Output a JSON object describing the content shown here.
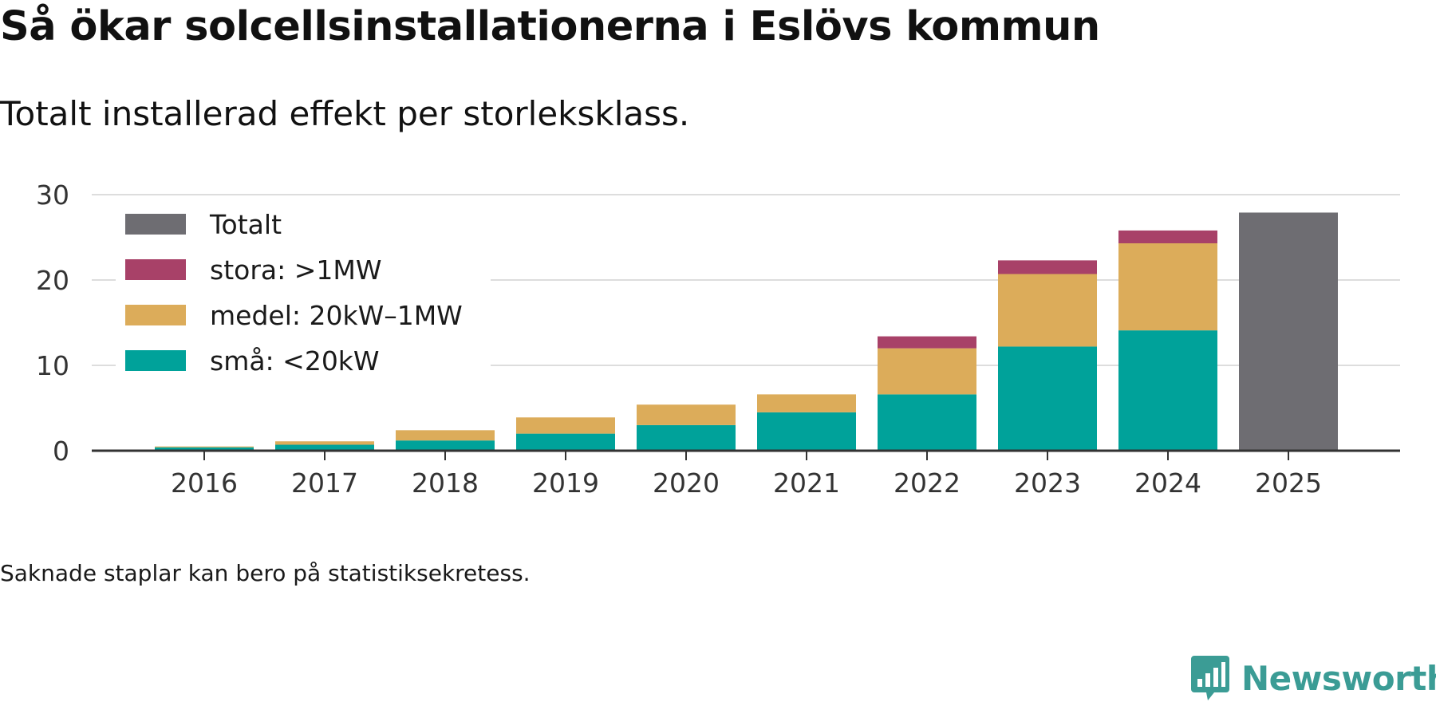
{
  "header": {
    "title": "Så ökar solcellsinstallationerna i Eslövs kommun",
    "subtitle": "Totalt installerad effekt per storleksklass."
  },
  "footer": {
    "note": "Saknade staplar kan bero på statistiksekretess.",
    "brand": "Newsworthy"
  },
  "colors": {
    "small": "#00a29a",
    "medium": "#dcac5a",
    "large": "#a84168",
    "total": "#6e6d72",
    "grid": "#dddddd",
    "axis": "#333333",
    "brand": "#3b9c95"
  },
  "chart_data": {
    "type": "bar",
    "stacked": true,
    "title": "Så ökar solcellsinstallationerna i Eslövs kommun",
    "subtitle": "Totalt installerad effekt per storleksklass.",
    "xlabel": "",
    "ylabel": "",
    "ylim": [
      0,
      30
    ],
    "yticks": [
      0,
      10,
      20,
      30
    ],
    "grid": true,
    "legend_position": "top-left",
    "categories": [
      "2016",
      "2017",
      "2018",
      "2019",
      "2020",
      "2021",
      "2022",
      "2023",
      "2024",
      "2025"
    ],
    "series": [
      {
        "name": "små: <20kW",
        "key": "small",
        "values": [
          0.4,
          0.7,
          1.2,
          2.0,
          3.0,
          4.5,
          6.6,
          12.2,
          14.1,
          null
        ]
      },
      {
        "name": "medel: 20kW–1MW",
        "key": "medium",
        "values": [
          0.1,
          0.4,
          1.2,
          1.9,
          2.4,
          2.1,
          5.4,
          8.5,
          10.2,
          null
        ]
      },
      {
        "name": "stora: >1MW",
        "key": "large",
        "values": [
          0,
          0,
          0,
          0,
          0,
          0,
          1.4,
          1.6,
          1.5,
          null
        ]
      },
      {
        "name": "Totalt",
        "key": "total",
        "values": [
          null,
          null,
          null,
          null,
          null,
          null,
          null,
          null,
          null,
          27.9
        ]
      }
    ],
    "legend_order": [
      "total",
      "large",
      "medium",
      "small"
    ]
  }
}
